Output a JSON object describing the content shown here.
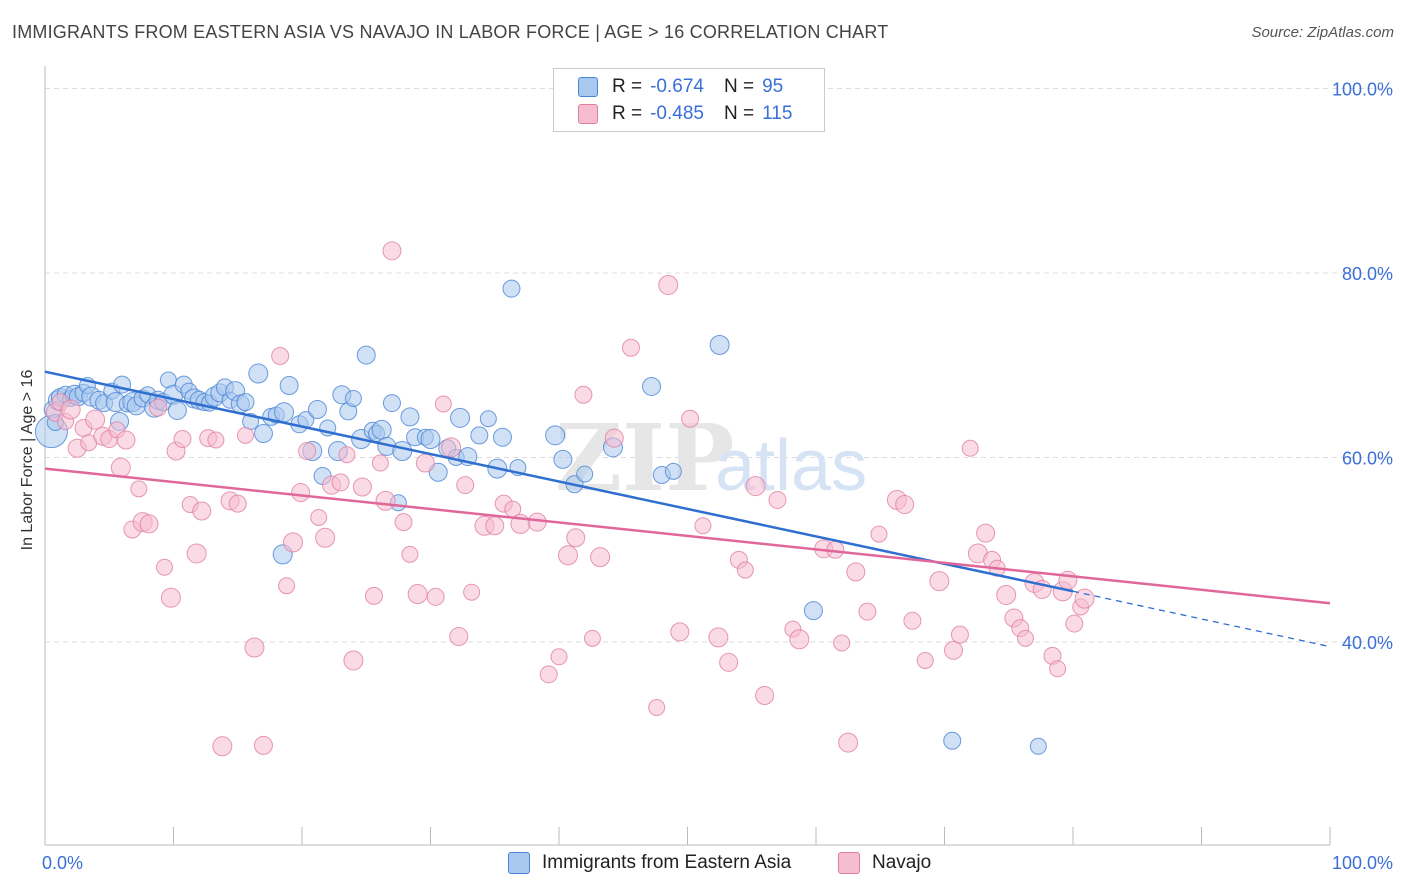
{
  "title": "IMMIGRANTS FROM EASTERN ASIA VS NAVAJO IN LABOR FORCE | AGE > 16 CORRELATION CHART",
  "source": "Source: ZipAtlas.com",
  "watermark": {
    "zip": "ZIP",
    "atlas": "atlas"
  },
  "legend": {
    "r_label": "R =",
    "n_label": "N =",
    "items": [
      {
        "r": "-0.674",
        "n": "95"
      },
      {
        "r": "-0.485",
        "n": "115"
      }
    ]
  },
  "colors": {
    "blue_fill": "#a9c8ef",
    "blue_stroke": "#4a84d4",
    "blue_line": "#2f6fcf",
    "pink_fill": "#f6bcd0",
    "pink_stroke": "#e07fa2",
    "pink_line": "#e0679a",
    "tick_label": "#3a6fd8",
    "grid": "#dddddd"
  },
  "chart_data": {
    "type": "scatter",
    "title": "IMMIGRANTS FROM EASTERN ASIA VS NAVAJO IN LABOR FORCE | AGE > 16 CORRELATION CHART",
    "xlabel": "",
    "ylabel": "In Labor Force | Age > 16",
    "xlim": [
      0,
      100
    ],
    "ylim": [
      18,
      102
    ],
    "x_tick_labels": [
      "0.0%",
      "100.0%"
    ],
    "y_ticks": [
      40,
      60,
      80,
      100
    ],
    "y_tick_labels": [
      "40.0%",
      "60.0%",
      "80.0%",
      "100.0%"
    ],
    "grid": true,
    "legend_position": "top-center",
    "series": [
      {
        "name": "Immigrants from Eastern Asia",
        "r": -0.674,
        "n": 95,
        "trend": {
          "x0": 0,
          "y0": 69.3,
          "x1": 80,
          "y1": 45.5,
          "dash_to_x": 100,
          "dash_to_y": 39.5
        },
        "points": [
          [
            0.5,
            62.8
          ],
          [
            0.6,
            65.2
          ],
          [
            0.8,
            63.8
          ],
          [
            1.0,
            66.2
          ],
          [
            1.2,
            66.5
          ],
          [
            1.6,
            66.8
          ],
          [
            2.0,
            66.4
          ],
          [
            2.3,
            66.8
          ],
          [
            2.6,
            66.6
          ],
          [
            3.0,
            67.0
          ],
          [
            3.3,
            67.8
          ],
          [
            3.6,
            66.6
          ],
          [
            4.2,
            66.2
          ],
          [
            4.6,
            65.9
          ],
          [
            5.2,
            67.2
          ],
          [
            5.5,
            66.0
          ],
          [
            5.8,
            63.9
          ],
          [
            6.0,
            67.9
          ],
          [
            6.4,
            65.8
          ],
          [
            6.8,
            66.0
          ],
          [
            7.1,
            65.6
          ],
          [
            7.6,
            66.4
          ],
          [
            8.0,
            66.8
          ],
          [
            8.5,
            65.4
          ],
          [
            8.8,
            66.2
          ],
          [
            9.2,
            66.0
          ],
          [
            9.6,
            68.4
          ],
          [
            10.0,
            66.8
          ],
          [
            10.3,
            65.1
          ],
          [
            10.8,
            67.9
          ],
          [
            11.2,
            67.2
          ],
          [
            11.6,
            66.4
          ],
          [
            12.0,
            66.2
          ],
          [
            12.4,
            66.0
          ],
          [
            12.8,
            65.9
          ],
          [
            13.2,
            66.6
          ],
          [
            13.6,
            67.0
          ],
          [
            14.0,
            67.6
          ],
          [
            14.4,
            66.2
          ],
          [
            14.8,
            67.2
          ],
          [
            15.2,
            65.8
          ],
          [
            15.6,
            66.0
          ],
          [
            16.0,
            63.9
          ],
          [
            16.6,
            69.1
          ],
          [
            17.0,
            62.6
          ],
          [
            17.6,
            64.4
          ],
          [
            18.0,
            64.6
          ],
          [
            18.6,
            64.9
          ],
          [
            19.0,
            67.8
          ],
          [
            19.8,
            63.6
          ],
          [
            20.3,
            64.1
          ],
          [
            20.8,
            60.7
          ],
          [
            21.2,
            65.2
          ],
          [
            21.6,
            58.0
          ],
          [
            22.0,
            63.2
          ],
          [
            22.8,
            60.7
          ],
          [
            23.1,
            66.8
          ],
          [
            23.6,
            65.0
          ],
          [
            24.0,
            66.4
          ],
          [
            24.6,
            62.0
          ],
          [
            25.0,
            71.1
          ],
          [
            25.5,
            62.9
          ],
          [
            25.8,
            62.6
          ],
          [
            26.2,
            63.0
          ],
          [
            26.6,
            61.2
          ],
          [
            27.0,
            65.9
          ],
          [
            27.5,
            55.1
          ],
          [
            27.8,
            60.7
          ],
          [
            28.4,
            64.4
          ],
          [
            28.8,
            62.2
          ],
          [
            29.6,
            62.2
          ],
          [
            30.0,
            62.0
          ],
          [
            30.6,
            58.4
          ],
          [
            31.3,
            61.0
          ],
          [
            32.0,
            60.0
          ],
          [
            32.3,
            64.3
          ],
          [
            32.9,
            60.1
          ],
          [
            33.8,
            62.4
          ],
          [
            34.5,
            64.2
          ],
          [
            35.2,
            58.8
          ],
          [
            35.6,
            62.2
          ],
          [
            36.3,
            78.3
          ],
          [
            36.8,
            58.9
          ],
          [
            39.7,
            62.4
          ],
          [
            40.3,
            59.8
          ],
          [
            41.2,
            57.1
          ],
          [
            42.0,
            58.2
          ],
          [
            44.2,
            61.1
          ],
          [
            47.2,
            67.7
          ],
          [
            48.0,
            58.1
          ],
          [
            48.9,
            58.5
          ],
          [
            52.5,
            72.2
          ],
          [
            59.8,
            43.4
          ],
          [
            70.6,
            29.3
          ],
          [
            77.3,
            28.7
          ],
          [
            18.5,
            49.5
          ]
        ]
      },
      {
        "name": "Navajo",
        "r": -0.485,
        "n": 115,
        "trend": {
          "x0": 0,
          "y0": 58.8,
          "x1": 100,
          "y1": 44.2
        },
        "points": [
          [
            0.8,
            64.9
          ],
          [
            1.2,
            66.0
          ],
          [
            1.6,
            63.9
          ],
          [
            2.0,
            65.2
          ],
          [
            2.5,
            61.0
          ],
          [
            3.0,
            63.2
          ],
          [
            3.4,
            61.6
          ],
          [
            3.9,
            64.1
          ],
          [
            4.5,
            62.3
          ],
          [
            5.0,
            62.0
          ],
          [
            5.6,
            63.0
          ],
          [
            5.9,
            58.9
          ],
          [
            6.3,
            61.9
          ],
          [
            6.8,
            52.2
          ],
          [
            7.3,
            56.6
          ],
          [
            7.6,
            53.0
          ],
          [
            8.1,
            52.8
          ],
          [
            8.8,
            65.4
          ],
          [
            9.3,
            48.1
          ],
          [
            9.8,
            44.8
          ],
          [
            10.2,
            60.7
          ],
          [
            10.7,
            62.0
          ],
          [
            11.3,
            54.9
          ],
          [
            11.8,
            49.6
          ],
          [
            12.2,
            54.2
          ],
          [
            12.7,
            62.1
          ],
          [
            13.3,
            61.9
          ],
          [
            13.8,
            28.7
          ],
          [
            14.4,
            55.3
          ],
          [
            15.0,
            55.0
          ],
          [
            15.6,
            62.4
          ],
          [
            16.3,
            39.4
          ],
          [
            17.0,
            28.8
          ],
          [
            18.3,
            71.0
          ],
          [
            18.8,
            46.1
          ],
          [
            19.3,
            50.8
          ],
          [
            19.9,
            56.2
          ],
          [
            20.4,
            60.7
          ],
          [
            21.3,
            53.5
          ],
          [
            21.8,
            51.3
          ],
          [
            22.3,
            57.0
          ],
          [
            23.0,
            57.3
          ],
          [
            23.5,
            60.3
          ],
          [
            24.0,
            38.0
          ],
          [
            24.7,
            56.8
          ],
          [
            25.6,
            45.0
          ],
          [
            26.1,
            59.4
          ],
          [
            26.5,
            55.3
          ],
          [
            27.0,
            82.4
          ],
          [
            27.9,
            53.0
          ],
          [
            28.4,
            49.5
          ],
          [
            29.0,
            45.2
          ],
          [
            29.6,
            59.4
          ],
          [
            30.4,
            44.9
          ],
          [
            31.0,
            65.8
          ],
          [
            31.6,
            61.1
          ],
          [
            32.2,
            40.6
          ],
          [
            32.7,
            57.0
          ],
          [
            33.2,
            45.4
          ],
          [
            34.2,
            52.6
          ],
          [
            35.0,
            52.6
          ],
          [
            35.7,
            55.0
          ],
          [
            36.4,
            54.4
          ],
          [
            37.0,
            52.8
          ],
          [
            38.3,
            53.0
          ],
          [
            39.2,
            36.5
          ],
          [
            40.0,
            38.4
          ],
          [
            40.7,
            49.4
          ],
          [
            41.3,
            51.3
          ],
          [
            41.9,
            66.8
          ],
          [
            42.6,
            40.4
          ],
          [
            43.2,
            49.2
          ],
          [
            44.3,
            62.1
          ],
          [
            45.6,
            71.9
          ],
          [
            47.6,
            32.9
          ],
          [
            48.5,
            78.7
          ],
          [
            49.4,
            41.1
          ],
          [
            50.2,
            64.2
          ],
          [
            51.2,
            52.6
          ],
          [
            52.4,
            40.5
          ],
          [
            53.2,
            37.8
          ],
          [
            54.0,
            48.9
          ],
          [
            54.5,
            47.8
          ],
          [
            55.3,
            56.9
          ],
          [
            56.0,
            34.2
          ],
          [
            57.0,
            55.4
          ],
          [
            58.2,
            41.4
          ],
          [
            58.7,
            40.3
          ],
          [
            60.6,
            50.1
          ],
          [
            61.5,
            50.0
          ],
          [
            62.0,
            39.9
          ],
          [
            62.5,
            29.1
          ],
          [
            63.1,
            47.6
          ],
          [
            64.0,
            43.3
          ],
          [
            64.9,
            51.7
          ],
          [
            66.3,
            55.4
          ],
          [
            66.9,
            54.9
          ],
          [
            67.5,
            42.3
          ],
          [
            68.5,
            38.0
          ],
          [
            69.6,
            46.6
          ],
          [
            70.7,
            39.1
          ],
          [
            71.2,
            40.8
          ],
          [
            72.0,
            61.0
          ],
          [
            72.6,
            49.6
          ],
          [
            73.2,
            51.8
          ],
          [
            73.7,
            48.9
          ],
          [
            74.1,
            48.0
          ],
          [
            74.8,
            45.1
          ],
          [
            75.4,
            42.6
          ],
          [
            75.9,
            41.5
          ],
          [
            76.3,
            40.4
          ],
          [
            77.0,
            46.4
          ],
          [
            77.6,
            45.7
          ],
          [
            78.4,
            38.5
          ],
          [
            78.8,
            37.1
          ],
          [
            79.2,
            45.5
          ],
          [
            79.6,
            46.7
          ],
          [
            80.1,
            42.0
          ],
          [
            80.6,
            43.8
          ],
          [
            80.9,
            44.7
          ]
        ]
      }
    ]
  },
  "bottom_legend": [
    "Immigrants from Eastern Asia",
    "Navajo"
  ]
}
